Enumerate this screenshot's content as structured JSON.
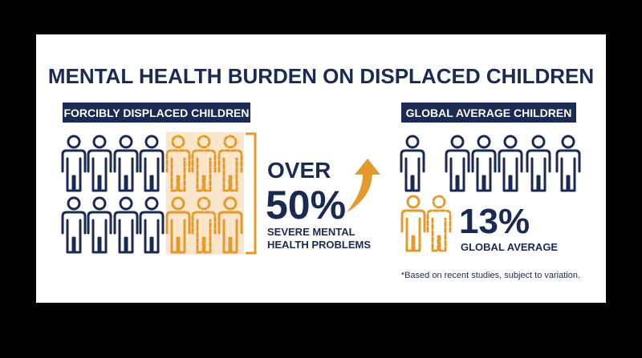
{
  "title": "MENTAL HEALTH BURDEN ON DISPLACED CHILDREN",
  "left": {
    "header": "FORCIBLY DISPLACED CHILDREN",
    "prefix": "OVER",
    "stat": "50%",
    "caption": [
      "SEVERE MENTAL",
      "HEALTH PROBLEMS"
    ]
  },
  "right": {
    "header": "GLOBAL AVERAGE CHILDREN",
    "stat": "13%",
    "caption": "GLOBAL AVERAGE"
  },
  "footnote": "*Based on recent studies, subject to variation."
}
